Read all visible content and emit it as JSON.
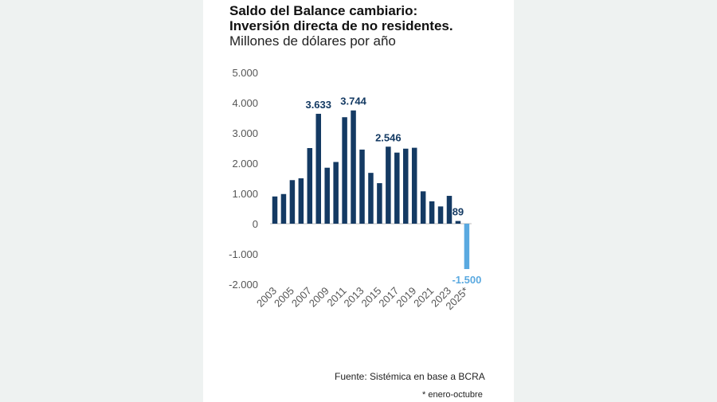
{
  "chart_data": {
    "type": "bar",
    "title": "Saldo del Balance cambiario:",
    "title_line2": "Inversión directa de no residentes.",
    "subtitle": "Millones de dólares por año",
    "categories": [
      "2003",
      "2004",
      "2005",
      "2006",
      "2007",
      "2008",
      "2009",
      "2010",
      "2011",
      "2012",
      "2013",
      "2014",
      "2015",
      "2016",
      "2017",
      "2018",
      "2019",
      "2020",
      "2021",
      "2022",
      "2023",
      "2024",
      "2025*"
    ],
    "x_tick_labels": [
      "2003",
      "2005",
      "2007",
      "2009",
      "2011",
      "2013",
      "2015",
      "2017",
      "2019",
      "2021",
      "2023",
      "2025*"
    ],
    "values": [
      900,
      980,
      1440,
      1500,
      2500,
      3633,
      1850,
      2040,
      3520,
      3744,
      2450,
      1680,
      1340,
      2546,
      2350,
      2480,
      2510,
      1070,
      740,
      570,
      920,
      89,
      -1500
    ],
    "data_labels": {
      "5": "3.633",
      "9": "3.744",
      "13": "2.546",
      "21": "89",
      "22": "-1.500"
    },
    "y_ticks": [
      5000,
      4000,
      3000,
      2000,
      1000,
      0,
      -1000,
      -2000
    ],
    "y_tick_labels": [
      "5.000",
      "4.000",
      "3.000",
      "2.000",
      "1.000",
      "0",
      "-1.000",
      "-2.000"
    ],
    "ylim": [
      -2000,
      5000
    ],
    "xlabel": "",
    "ylabel": "",
    "grid": false,
    "colors": {
      "positive": "#143a63",
      "highlight": "#5aa9e0"
    }
  },
  "footer": {
    "source": "Fuente:  Sistémica en base a BCRA",
    "note": "* enero-octubre"
  }
}
